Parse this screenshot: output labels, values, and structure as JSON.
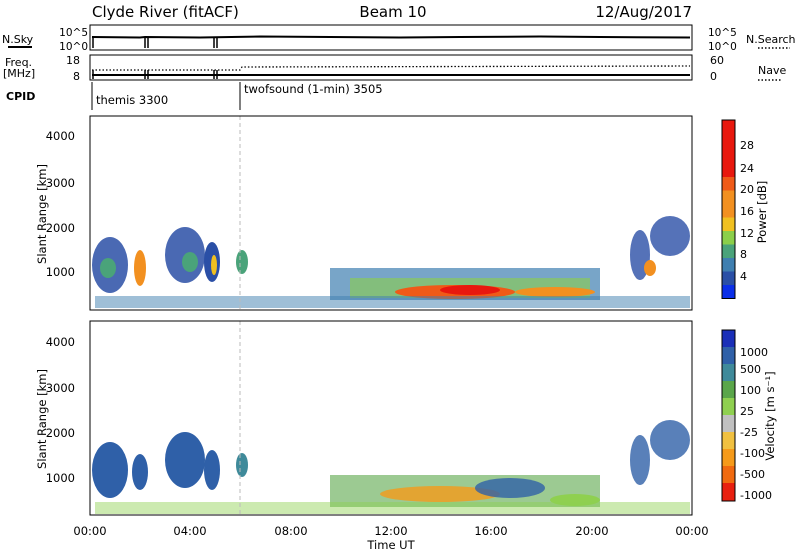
{
  "header": {
    "station": "Clyde River (fitACF)",
    "beam": "Beam 10",
    "date": "12/Aug/2017"
  },
  "status_panel": {
    "nsky_label": "N.Sky",
    "nsearch_label": "N.Search",
    "nsky_ticks": [
      "10^5",
      "10^0"
    ],
    "nsearch_ticks": [
      "10^5",
      "10^0"
    ],
    "freq_label": "Freq.",
    "freq_unit": "[MHz]",
    "freq_ticks": [
      "18",
      "8"
    ],
    "nave_label": "Nave",
    "nave_ticks": [
      "60",
      "0"
    ],
    "cpid_label": "CPID",
    "cpid_modes": [
      "themis 3300",
      "twofsound (1-min) 3505"
    ]
  },
  "colorbars": {
    "power": {
      "label": "Power [dB]",
      "ticks": [
        "28",
        "24",
        "20",
        "16",
        "12",
        "8",
        "4"
      ],
      "colors": [
        "#0b2fe8",
        "#2a4fa6",
        "#3f7fb0",
        "#4aa37a",
        "#8bcf4a",
        "#f0c020",
        "#f29020",
        "#ef5a18",
        "#e8180e"
      ]
    },
    "velocity": {
      "label": "Velocity [m s⁻¹]",
      "ticks": [
        "1000",
        "500",
        "100",
        "25",
        "-25",
        "-100",
        "-500",
        "-1000"
      ],
      "colors": [
        "#1a2fb8",
        "#2f60a8",
        "#3f8a9a",
        "#5aa64a",
        "#8fd050",
        "#c0c0c0",
        "#f0c040",
        "#f59a1a",
        "#f06a10",
        "#e82010"
      ]
    }
  },
  "chart_data": [
    {
      "type": "heatmap",
      "title": "Power",
      "xlabel": "",
      "ylabel": "Slant Range [km]",
      "ylim": [
        180,
        4500
      ],
      "yticks": [
        "1000",
        "2000",
        "3000",
        "4000"
      ],
      "x_range": [
        "00:00",
        "24:00"
      ],
      "colorbar_label": "Power [dB]"
    },
    {
      "type": "heatmap",
      "title": "Velocity",
      "xlabel": "Time UT",
      "ylabel": "Slant Range [km]",
      "ylim": [
        180,
        4500
      ],
      "yticks": [
        "1000",
        "2000",
        "3000",
        "4000"
      ],
      "xticks": [
        "00:00",
        "04:00",
        "08:00",
        "12:00",
        "16:00",
        "20:00",
        "00:00"
      ],
      "colorbar_label": "Velocity [m s⁻¹]"
    }
  ]
}
